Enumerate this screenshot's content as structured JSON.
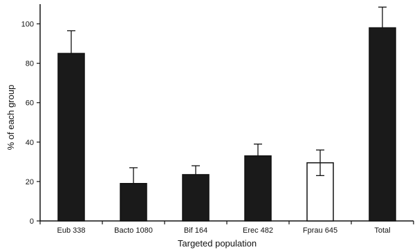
{
  "chart_data": {
    "type": "bar",
    "title": "",
    "xlabel": "Targeted population",
    "ylabel": "% of each group",
    "ylim": [
      0,
      110
    ],
    "yticks": [
      0,
      20,
      40,
      60,
      80,
      100
    ],
    "categories": [
      "Eub 338",
      "Bacto 1080",
      "Bif 164",
      "Erec 482",
      "Fprau 645",
      "Total"
    ],
    "values": [
      85,
      19,
      23.5,
      33,
      29.5,
      98
    ],
    "errors": [
      11.5,
      8,
      4.5,
      6,
      6.5,
      10.5
    ],
    "fills": [
      "#1a1a1a",
      "#1a1a1a",
      "#1a1a1a",
      "#1a1a1a",
      "#ffffff",
      "#1a1a1a"
    ],
    "grid": false,
    "legend": "none"
  }
}
